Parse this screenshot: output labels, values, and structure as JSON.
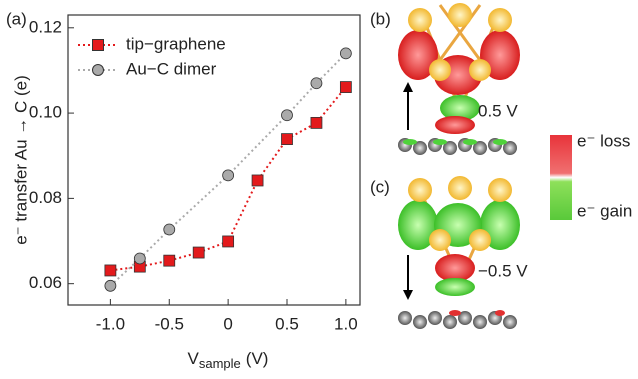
{
  "chart_data": {
    "type": "line",
    "panel_label": "(a)",
    "xlabel": {
      "main": "V",
      "sub": "sample",
      "unit": "(V)"
    },
    "ylabel": "e⁻ transfer Au → C (e)",
    "xlim": [
      -1.36,
      1.12
    ],
    "ylim": [
      0.055,
      0.123
    ],
    "xticks": [
      {
        "value": -1,
        "label": "-1.0"
      },
      -0.5,
      0,
      0.5,
      {
        "value": 1,
        "label": "1.0"
      }
    ],
    "yticks": [
      0.06,
      0.08,
      {
        "value": 0.1,
        "label": "0.10"
      },
      0.12
    ],
    "legend": "upper left",
    "series": [
      {
        "name": "tip−graphene",
        "color": "#e31a1c",
        "marker": "square",
        "x": [
          -1,
          -0.75,
          -0.5,
          -0.25,
          0,
          0.25,
          0.5,
          0.75,
          1
        ],
        "values": [
          0.0631,
          0.064,
          0.0654,
          0.0673,
          0.0699,
          0.0842,
          0.0939,
          0.0977,
          0.1061
        ]
      },
      {
        "name": "Au−C dimer",
        "color": "#aaaaaa",
        "marker": "circle",
        "x": [
          -1,
          -0.75,
          -0.5,
          0,
          0.5,
          0.75,
          1
        ],
        "values": [
          0.0595,
          0.0659,
          0.0727,
          0.0854,
          0.0995,
          0.107,
          0.114
        ]
      }
    ]
  },
  "panels": {
    "b": {
      "label": "(b)",
      "bias": "0.5 V"
    },
    "c": {
      "label": "(c)",
      "bias": "−0.5 V"
    }
  },
  "colorbar": {
    "loss": "e⁻ loss",
    "gain": "e⁻ gain"
  }
}
